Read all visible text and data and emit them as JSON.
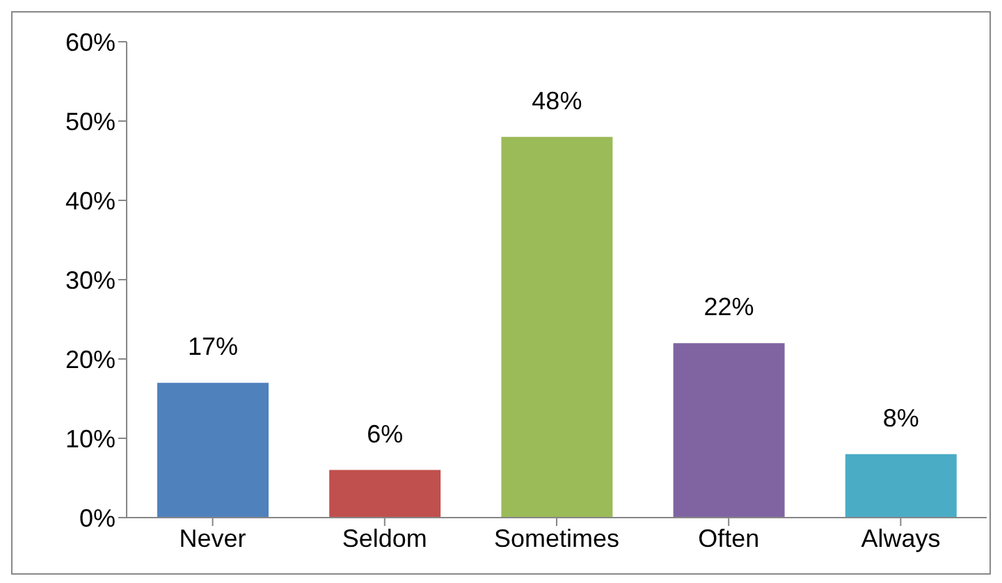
{
  "chart_data": {
    "type": "bar",
    "categories": [
      "Never",
      "Seldom",
      "Sometimes",
      "Often",
      "Always"
    ],
    "values": [
      17,
      6,
      48,
      22,
      8
    ],
    "colors": [
      "#4f81bd",
      "#c0504d",
      "#9bbb59",
      "#8064a2",
      "#4bacc6"
    ],
    "value_labels": [
      "17%",
      "6%",
      "48%",
      "22%",
      "8%"
    ],
    "ylim": [
      0,
      60
    ],
    "yticks": [
      {
        "value": 0,
        "label": "0%"
      },
      {
        "value": 10,
        "label": "10%"
      },
      {
        "value": 20,
        "label": "20%"
      },
      {
        "value": 30,
        "label": "30%"
      },
      {
        "value": 40,
        "label": "40%"
      },
      {
        "value": 50,
        "label": "50%"
      },
      {
        "value": 60,
        "label": "60%"
      }
    ],
    "grid": false,
    "legend": false
  }
}
